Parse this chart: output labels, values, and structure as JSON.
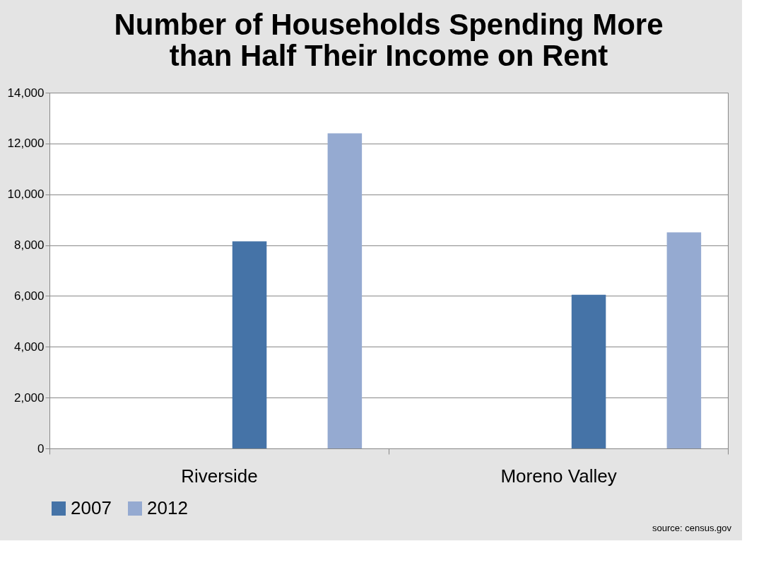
{
  "chart_data": {
    "type": "bar",
    "title": "Number of Households Spending More than Half Their Income on Rent",
    "categories": [
      "Riverside",
      "Moreno Valley"
    ],
    "series": [
      {
        "name": "2007",
        "color": "#4573a7",
        "values": [
          8150,
          6050
        ]
      },
      {
        "name": "2012",
        "color": "#95aad1",
        "values": [
          12400,
          8500
        ]
      }
    ],
    "ylim": [
      0,
      14000
    ],
    "yticks": [
      {
        "value": 0,
        "label": "0"
      },
      {
        "value": 2000,
        "label": "2,000"
      },
      {
        "value": 4000,
        "label": "4,000"
      },
      {
        "value": 6000,
        "label": "6,000"
      },
      {
        "value": 8000,
        "label": "8,000"
      },
      {
        "value": 10000,
        "label": "10,000"
      },
      {
        "value": 12000,
        "label": "12,000"
      },
      {
        "value": 14000,
        "label": "14,000"
      }
    ],
    "grid": "y",
    "legend": "bottom",
    "annotations": [
      "source: census.gov"
    ]
  }
}
